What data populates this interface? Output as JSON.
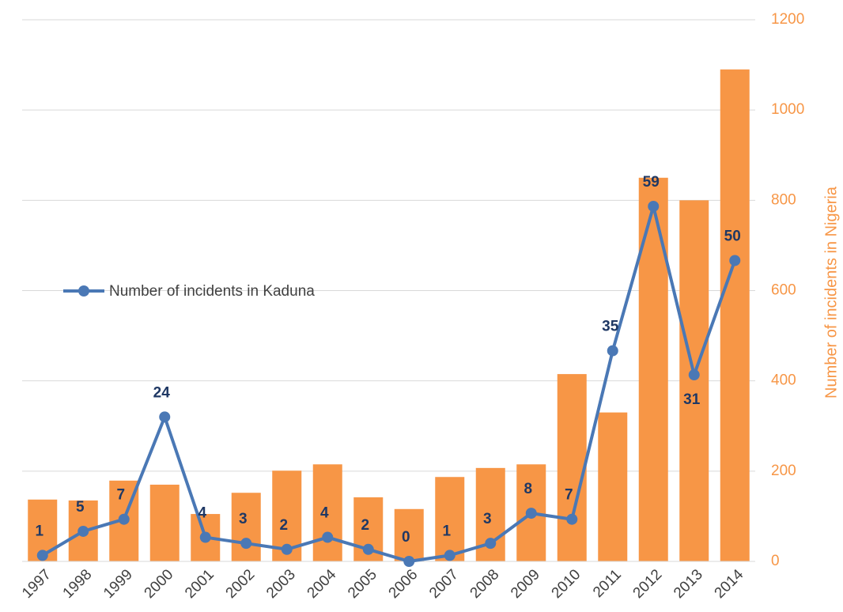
{
  "chart_data": {
    "type": "bar-line",
    "categories": [
      "1997",
      "1998",
      "1999",
      "2000",
      "2001",
      "2002",
      "2003",
      "2004",
      "2005",
      "2006",
      "2007",
      "2008",
      "2009",
      "2010",
      "2011",
      "2012",
      "2013",
      "2014"
    ],
    "series": [
      {
        "name": "Number of incidents in Nigeria",
        "type": "bar",
        "axis": "y2",
        "color": "#f79646",
        "values": [
          137,
          135,
          179,
          170,
          105,
          152,
          201,
          215,
          142,
          116,
          187,
          207,
          215,
          415,
          330,
          850,
          800,
          1090
        ]
      },
      {
        "name": "Number of incidents in Kaduna",
        "type": "line",
        "axis": "y",
        "color": "#4a78b5",
        "values": [
          1,
          5,
          7,
          24,
          4,
          3,
          2,
          4,
          2,
          0,
          1,
          3,
          8,
          7,
          35,
          59,
          31,
          50
        ]
      }
    ],
    "ylim": [
      0,
      90
    ],
    "y2lim": [
      0,
      1200
    ],
    "y2ticks": [
      0,
      200,
      400,
      600,
      800,
      1000,
      1200
    ],
    "y2label": "Number  of incidents in Nigeria",
    "grid": true,
    "legend": "left"
  }
}
